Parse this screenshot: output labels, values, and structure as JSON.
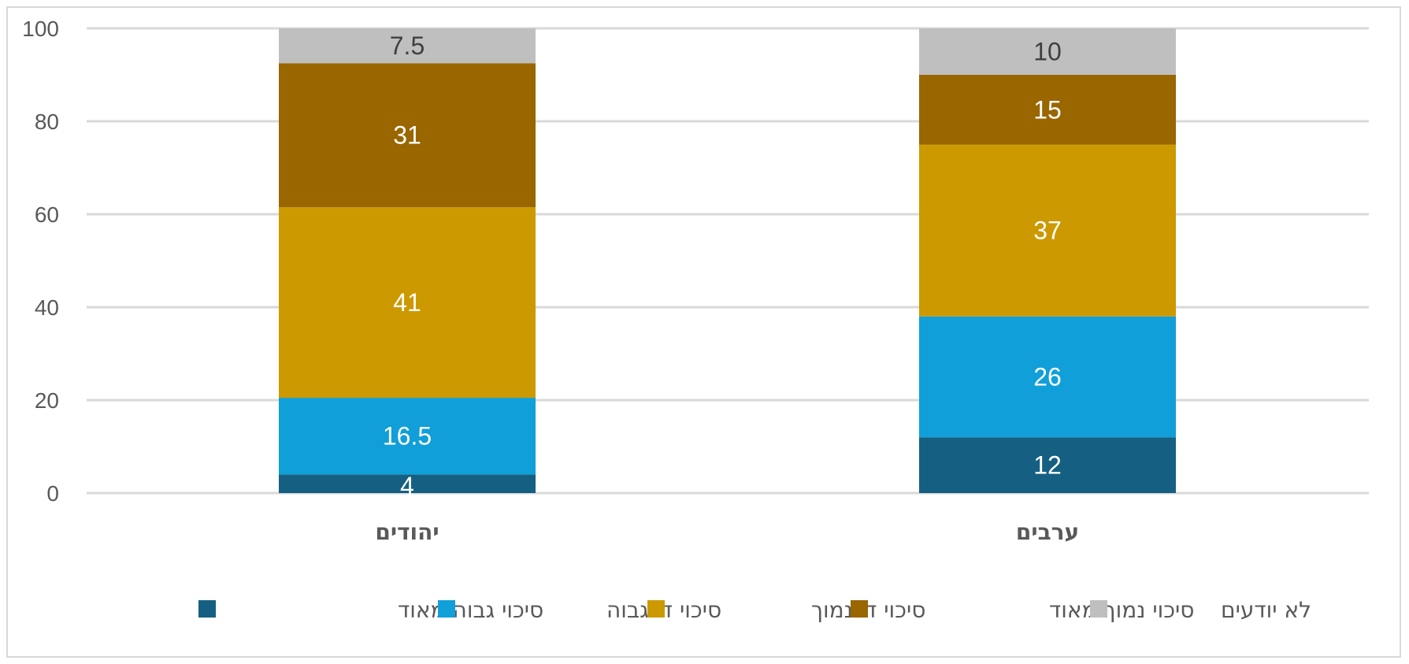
{
  "chart_data": {
    "type": "bar",
    "stacked": true,
    "categories": [
      "יהודים",
      "ערבים"
    ],
    "series": [
      {
        "name": "סיכוי גבוה מאוד",
        "values": [
          4,
          12
        ],
        "color": "#156082",
        "label_color": "#ffffff"
      },
      {
        "name": "סיכוי די גבוה",
        "values": [
          16.5,
          26
        ],
        "color": "#109fd8",
        "label_color": "#ffffff"
      },
      {
        "name": "סיכוי די נמוך",
        "values": [
          41,
          37
        ],
        "color": "#cc9900",
        "label_color": "#ffffff"
      },
      {
        "name": "סיכוי נמוך מאוד",
        "values": [
          31,
          15
        ],
        "color": "#996600",
        "label_color": "#ffffff"
      },
      {
        "name": "לא יודעים",
        "values": [
          7.5,
          10
        ],
        "color": "#bfbfbf",
        "label_color": "#404040"
      }
    ],
    "ylim": [
      0,
      100
    ],
    "yticks": [
      0,
      20,
      40,
      60,
      80,
      100
    ],
    "grid": true,
    "legend_position": "bottom",
    "title": "",
    "xlabel": "",
    "ylabel": ""
  }
}
